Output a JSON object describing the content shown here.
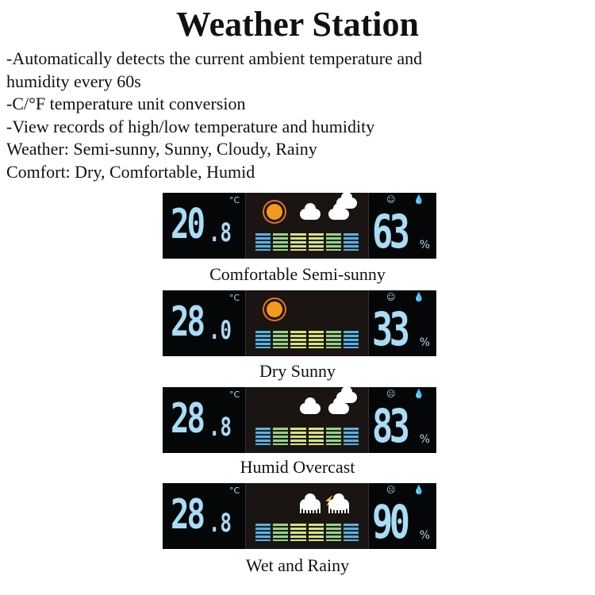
{
  "title": "Weather Station",
  "features": [
    "-Automatically detects the current ambient temperature and",
    "humidity every 60s",
    "-C/°F temperature unit conversion",
    "-View records of high/low temperature and humidity",
    "Weather: Semi-sunny, Sunny, Cloudy, Rainy",
    "Comfort: Dry, Comfortable, Humid"
  ],
  "unit": "°C",
  "percent": "%",
  "displays": [
    {
      "temp_int": "20",
      "temp_dec": ".8",
      "humidity": "63",
      "face": "☺",
      "weather": "semi-sunny",
      "label": "Comfortable Semi-sunny"
    },
    {
      "temp_int": "28",
      "temp_dec": ".0",
      "humidity": "33",
      "face": "☺",
      "weather": "sunny",
      "label": "Dry Sunny"
    },
    {
      "temp_int": "28",
      "temp_dec": ".8",
      "humidity": "83",
      "face": "☹",
      "weather": "cloudy",
      "label": "Humid Overcast"
    },
    {
      "temp_int": "28",
      "temp_dec": ".8",
      "humidity": "90",
      "face": "☹",
      "weather": "rainy",
      "label": "Wet and Rainy"
    }
  ],
  "colors": {
    "digits": "#a9dcf5",
    "sun": "#f39a1e"
  }
}
